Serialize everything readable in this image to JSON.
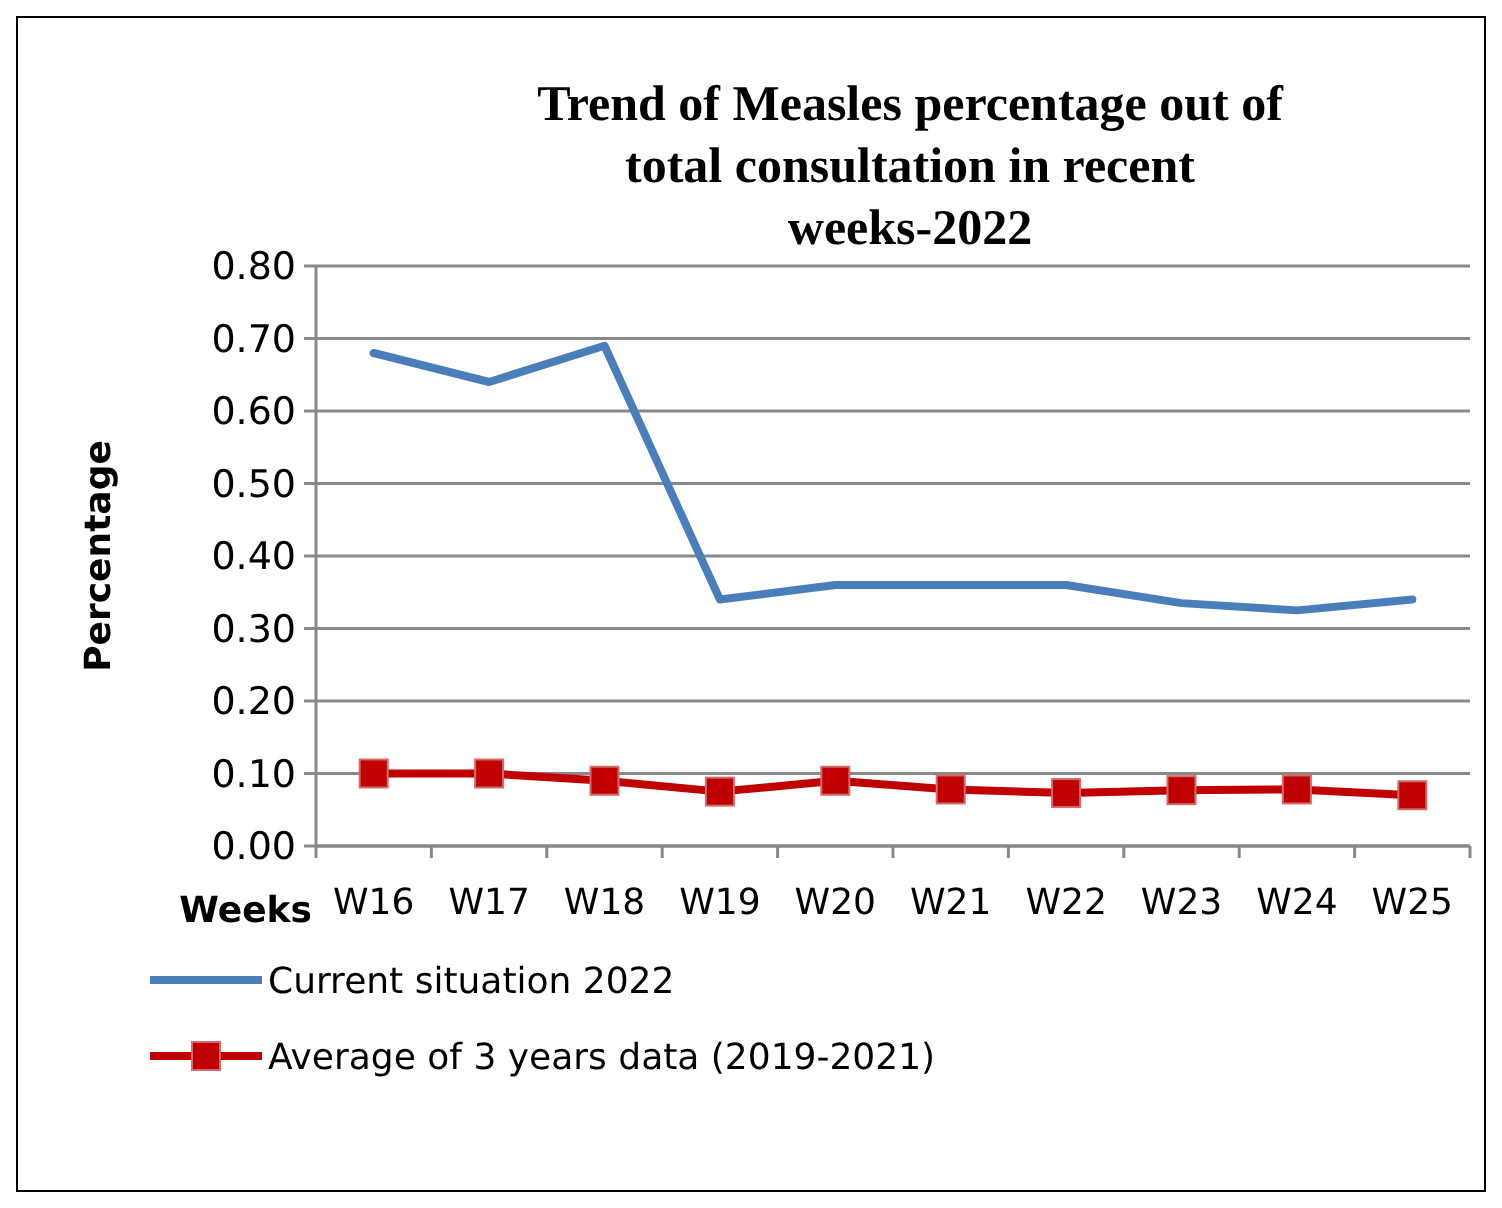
{
  "chart_data": {
    "type": "line",
    "title": "Trend of Measles percentage out of total consultation in recent weeks-2022",
    "xlabel": "Weeks",
    "ylabel": "Percentage",
    "categories": [
      "W16",
      "W17",
      "W18",
      "W19",
      "W20",
      "W21",
      "W22",
      "W23",
      "W24",
      "W25"
    ],
    "series": [
      {
        "name": "Current situation 2022",
        "color": "#4a7ebb",
        "marker": "none",
        "values": [
          0.68,
          0.64,
          0.69,
          0.34,
          0.36,
          0.36,
          0.36,
          0.335,
          0.325,
          0.34
        ]
      },
      {
        "name": "Average of 3 years data (2019-2021)",
        "color": "#c00000",
        "marker": "square",
        "values": [
          0.1,
          0.1,
          0.09,
          0.075,
          0.09,
          0.078,
          0.073,
          0.077,
          0.078,
          0.07
        ]
      }
    ],
    "ylim": [
      0,
      0.8
    ],
    "yticks": [
      {
        "value": 0,
        "label": "0.00"
      },
      {
        "value": 0.1,
        "label": "0.10"
      },
      {
        "value": 0.2,
        "label": "0.20"
      },
      {
        "value": 0.3,
        "label": "0.30"
      },
      {
        "value": 0.4,
        "label": "0.40"
      },
      {
        "value": 0.5,
        "label": "0.50"
      },
      {
        "value": 0.6,
        "label": "0.60"
      },
      {
        "value": 0.7,
        "label": "0.70"
      },
      {
        "value": 0.8,
        "label": "0.80"
      }
    ],
    "grid": "y",
    "legend": "bottom"
  }
}
